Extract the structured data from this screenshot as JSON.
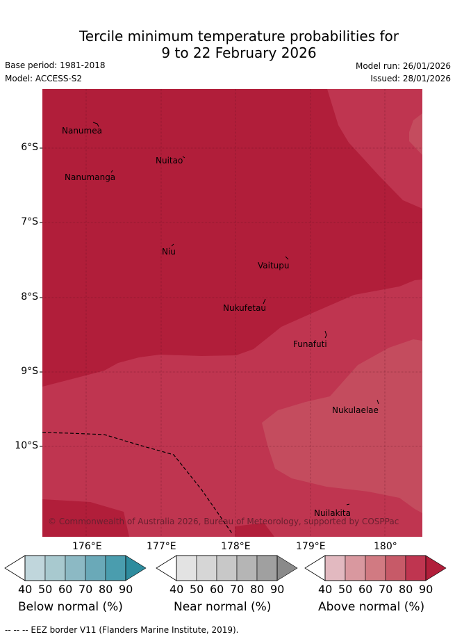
{
  "title_line1": "Tercile minimum temperature probabilities for",
  "title_line2": "9 to 22 February 2026",
  "base_period": "Base period: 1981-2018",
  "model": "Model: ACCESS-S2",
  "model_run": "Model run: 26/01/2026",
  "issued": "Issued: 28/01/2026",
  "copyright": "© Commonwealth of Australia 2026, Bureau of Meteorology, supported by COSPPac",
  "footer": "--  --  -- EEZ border V11 (Flanders Marine Institute, 2019).",
  "axes": {
    "lat_ticks": [
      "6°S",
      "7°S",
      "8°S",
      "9°S",
      "10°S"
    ],
    "lon_ticks": [
      "176°E",
      "177°E",
      "178°E",
      "179°E",
      "180°"
    ]
  },
  "places": {
    "nanumea": "Nanumea",
    "nuitao": "Nuitao",
    "nanumanga": "Nanumanga",
    "niu": "Niu",
    "vaitupu": "Vaitupu",
    "nukufetau": "Nukufetau",
    "funafuti": "Funafuti",
    "nukulaelae": "Nukulaelae",
    "nuilakita": "Nuilakita"
  },
  "colorbars": {
    "below": {
      "title": "Below normal (%)",
      "ticks": [
        "40",
        "50",
        "60",
        "70",
        "80",
        "90"
      ],
      "colors": [
        "#c0d6dc",
        "#a8c9cf",
        "#8cb9c4",
        "#6aa9b8",
        "#4a9dae",
        "#2e8c9e"
      ]
    },
    "near": {
      "title": "Near normal (%)",
      "ticks": [
        "40",
        "50",
        "60",
        "70",
        "80",
        "90"
      ],
      "colors": [
        "#e3e3e3",
        "#d6d6d6",
        "#c8c8c8",
        "#b5b5b5",
        "#a0a0a0",
        "#8a8a8a"
      ]
    },
    "above": {
      "title": "Above normal (%)",
      "ticks": [
        "40",
        "50",
        "60",
        "70",
        "80",
        "90"
      ],
      "colors": [
        "#e2b9c0",
        "#d9989f",
        "#d17a82",
        "#c75a68",
        "#bf3550",
        "#b11e3a"
      ]
    }
  },
  "colors": {
    "dark_red": "#b11e3a",
    "mid_red": "#bf3550",
    "light_red": "#c44c5e"
  }
}
